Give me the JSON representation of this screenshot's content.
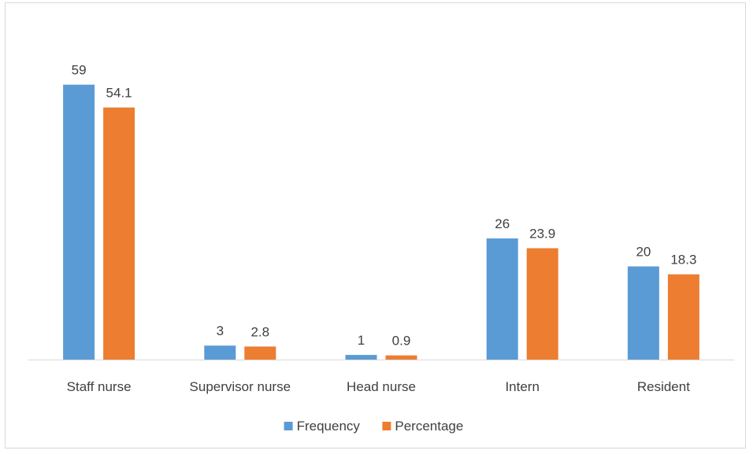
{
  "chart_data": {
    "type": "bar",
    "categories": [
      "Staff nurse",
      "Supervisor nurse",
      "Head nurse",
      "Intern",
      "Resident"
    ],
    "series": [
      {
        "name": "Frequency",
        "values": [
          59,
          3,
          1,
          26,
          20
        ],
        "labels": [
          "59",
          "3",
          "1",
          "26",
          "20"
        ],
        "color": "#5b9bd5"
      },
      {
        "name": "Percentage",
        "values": [
          54.1,
          2.8,
          0.9,
          23.9,
          18.3
        ],
        "labels": [
          "54.1",
          "2.8",
          "0.9",
          "23.9",
          "18.3"
        ],
        "color": "#ed7d31"
      }
    ],
    "ylim": [
      0,
      64
    ],
    "grid": false,
    "legend": "bottom",
    "axis_color": "#d9d9d9"
  }
}
